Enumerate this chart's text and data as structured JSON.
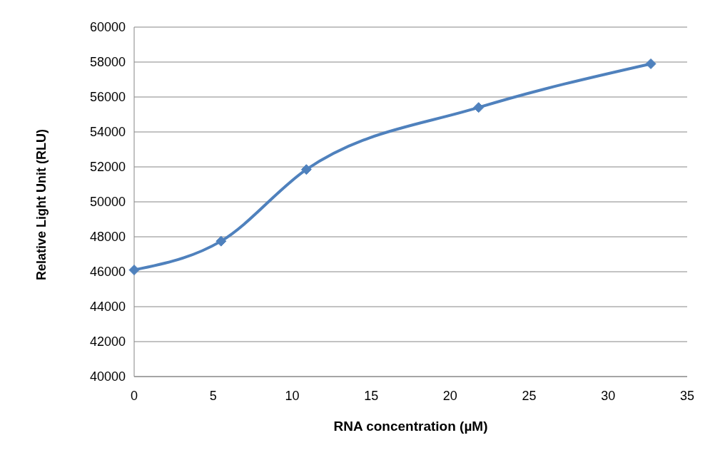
{
  "chart_data": {
    "type": "line",
    "xlabel": "RNA concentration (µM)",
    "ylabel": "Relative Light Unit (RLU)",
    "x": [
      0,
      5.5,
      10.9,
      21.8,
      32.7
    ],
    "series": [
      {
        "color": "#4f81bd",
        "values": [
          46100,
          47750,
          51850,
          55400,
          57900
        ]
      }
    ],
    "xlim": [
      0,
      35
    ],
    "xticks": [
      0,
      5,
      10,
      15,
      20,
      25,
      30,
      35
    ],
    "ylim": [
      40000,
      60000
    ],
    "yticks": [
      40000,
      42000,
      44000,
      46000,
      48000,
      50000,
      52000,
      54000,
      56000,
      58000,
      60000
    ],
    "grid": "y",
    "legend": false,
    "marker": "diamond",
    "line_style": "solid"
  }
}
